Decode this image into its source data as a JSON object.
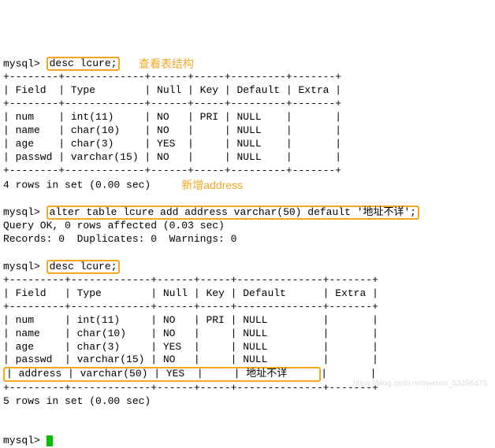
{
  "prompt": "mysql>",
  "commands": {
    "desc1": "desc lcure;",
    "alter": "alter table lcure add address varchar(50) default '地址不详';",
    "desc2": "desc lcure;"
  },
  "annotations": {
    "view_structure": "查看表结构",
    "add_address": "新增address"
  },
  "table1": {
    "border_top": "+--------+-------------+------+-----+---------+-------+",
    "header": "| Field  | Type        | Null | Key | Default | Extra |",
    "border_mid": "+--------+-------------+------+-----+---------+-------+",
    "rows": [
      "| num    | int(11)     | NO   | PRI | NULL    |       |",
      "| name   | char(10)    | NO   |     | NULL    |       |",
      "| age    | char(3)     | YES  |     | NULL    |       |",
      "| passwd | varchar(15) | NO   |     | NULL    |       |"
    ],
    "border_bot": "+--------+-------------+------+-----+---------+-------+",
    "result": "4 rows in set (0.00 sec)"
  },
  "alter_result": {
    "line1": "Query OK, 0 rows affected (0.03 sec)",
    "line2": "Records: 0  Duplicates: 0  Warnings: 0"
  },
  "table2": {
    "border_top": "+---------+-------------+------+-----+--------------+-------+",
    "header": "| Field   | Type        | Null | Key | Default      | Extra |",
    "border_mid": "+---------+-------------+------+-----+--------------+-------+",
    "rows": [
      "| num     | int(11)     | NO   | PRI | NULL         |       |",
      "| name    | char(10)    | NO   |     | NULL         |       |",
      "| age     | char(3)     | YES  |     | NULL         |       |",
      "| passwd  | varchar(15) | NO   |     | NULL         |       |"
    ],
    "row_address": "| address | varchar(50) | YES  |     | 地址不详     ",
    "row_address_end": "|       |",
    "border_bot": "+---------+-------------+------+-----+--------------+-------+",
    "result": "5 rows in set (0.00 sec)"
  },
  "watermark": "https://blog.csdn.net/weixin_53496478"
}
